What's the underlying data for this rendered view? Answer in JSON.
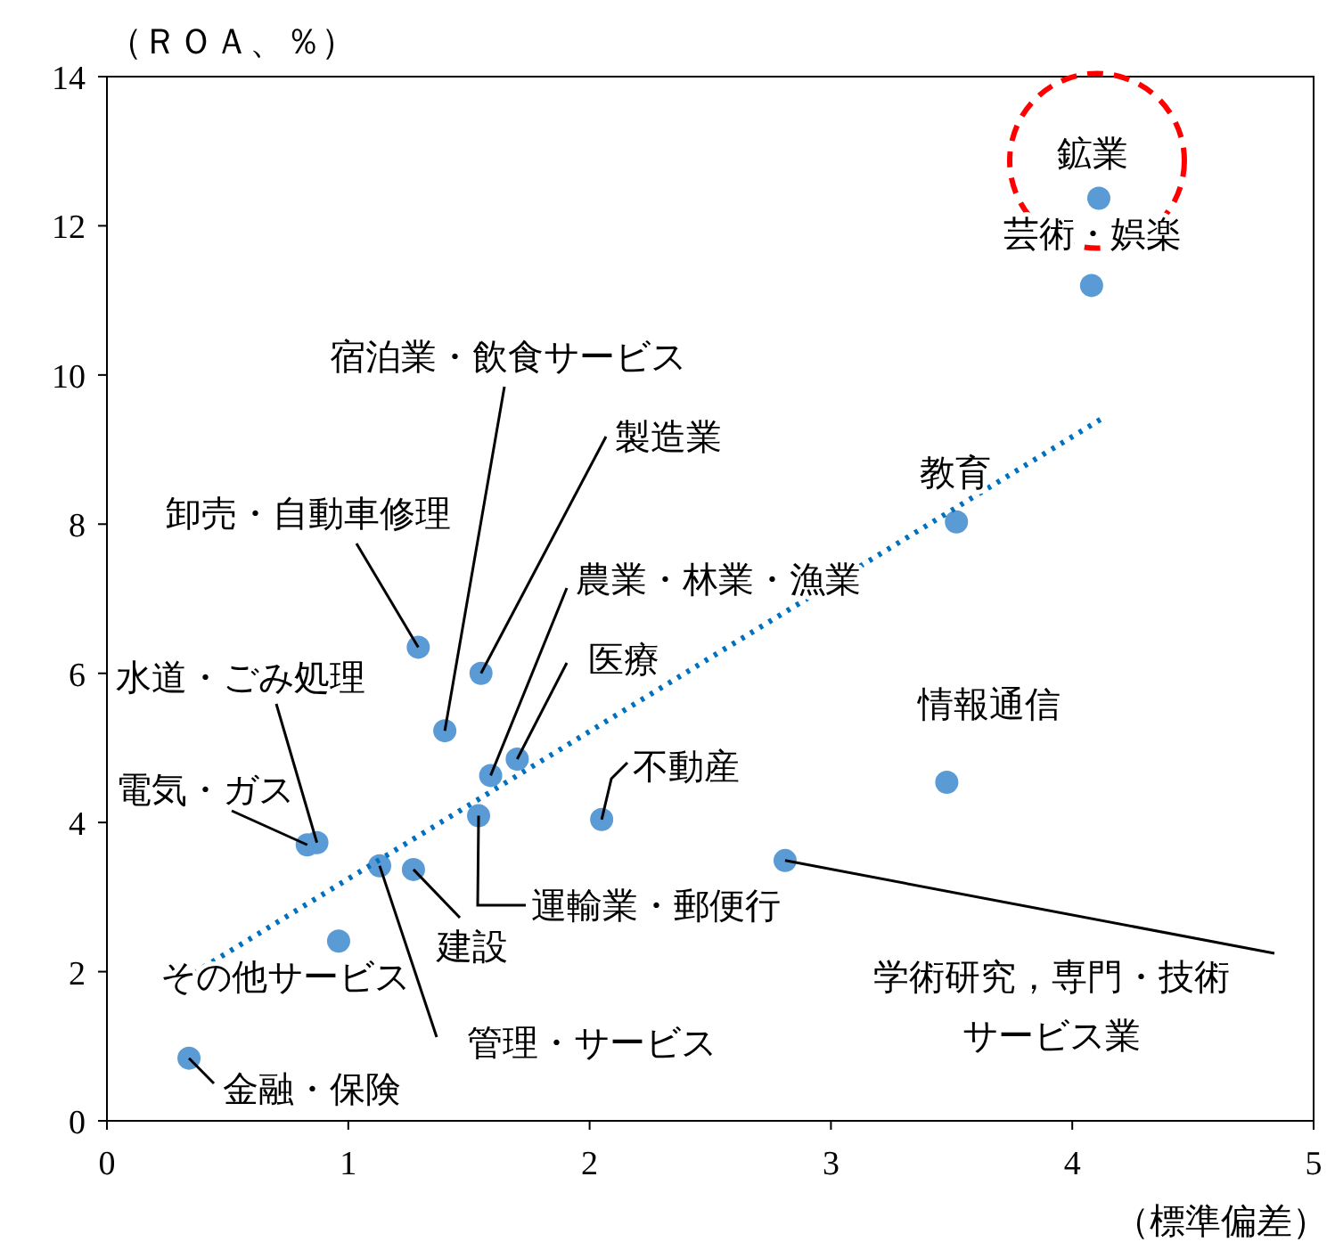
{
  "chart_data": {
    "type": "scatter",
    "ylabel": "（ＲＯＡ、％）",
    "xlabel": "（標準偏差）",
    "xlim": [
      0,
      5
    ],
    "xticks": [
      0,
      1,
      2,
      3,
      4,
      5
    ],
    "ylim": [
      0,
      14
    ],
    "yticks": [
      0,
      2,
      4,
      6,
      8,
      10,
      12,
      14
    ],
    "grid": false,
    "series": [
      {
        "marker": "circle",
        "color": "#5b9bd5",
        "x": [
          4.11,
          4.08,
          3.52,
          3.48,
          2.81,
          2.05,
          1.7,
          1.59,
          1.55,
          1.4,
          1.29,
          1.54,
          1.27,
          1.13,
          0.96,
          0.87,
          0.83,
          0.34
        ],
        "values": [
          12.37,
          11.2,
          8.03,
          4.54,
          3.49,
          4.04,
          4.85,
          4.63,
          6.0,
          5.23,
          6.35,
          4.09,
          3.37,
          3.42,
          2.41,
          3.73,
          3.7,
          0.84
        ]
      },
      {
        "type": "line",
        "color": "#0070c0",
        "line_style": "dotted",
        "x": [
          0.36,
          4.12
        ],
        "values": [
          1.98,
          9.41
        ]
      }
    ],
    "annotations": [
      {
        "text": "鉱業",
        "x": 4.11,
        "y": 12.37
      },
      {
        "text": "芸術・娯楽",
        "x": 4.08,
        "y": 11.2
      },
      {
        "text": "教育",
        "x": 3.52,
        "y": 8.03
      },
      {
        "text": "情報通信",
        "x": 3.48,
        "y": 4.54
      },
      {
        "text": "学術研究，専門・技術",
        "x": 2.81,
        "y": 3.49
      },
      "サービス業",
      {
        "text": "不動産",
        "x": 2.05,
        "y": 4.04
      },
      {
        "text": "医療",
        "x": 1.7,
        "y": 4.85
      },
      {
        "text": "農業・林業・漁業",
        "x": 1.59,
        "y": 4.63
      },
      {
        "text": "製造業",
        "x": 1.55,
        "y": 6.0
      },
      {
        "text": "宿泊業・飲食サービス",
        "x": 1.4,
        "y": 5.23
      },
      {
        "text": "卸売・自動車修理",
        "x": 1.29,
        "y": 6.35
      },
      {
        "text": "運輸業・郵便行",
        "x": 1.54,
        "y": 4.09
      },
      {
        "text": "建設",
        "x": 1.27,
        "y": 3.37
      },
      {
        "text": "管理・サービス",
        "x": 1.13,
        "y": 3.42
      },
      {
        "text": "その他サービス",
        "x": 0.96,
        "y": 2.41
      },
      {
        "text": "水道・ごみ処理",
        "x": 0.87,
        "y": 3.73
      },
      {
        "text": "電気・ガス",
        "x": 0.83,
        "y": 3.7
      },
      {
        "text": "金融・保険",
        "x": 0.34,
        "y": 0.84
      }
    ]
  }
}
